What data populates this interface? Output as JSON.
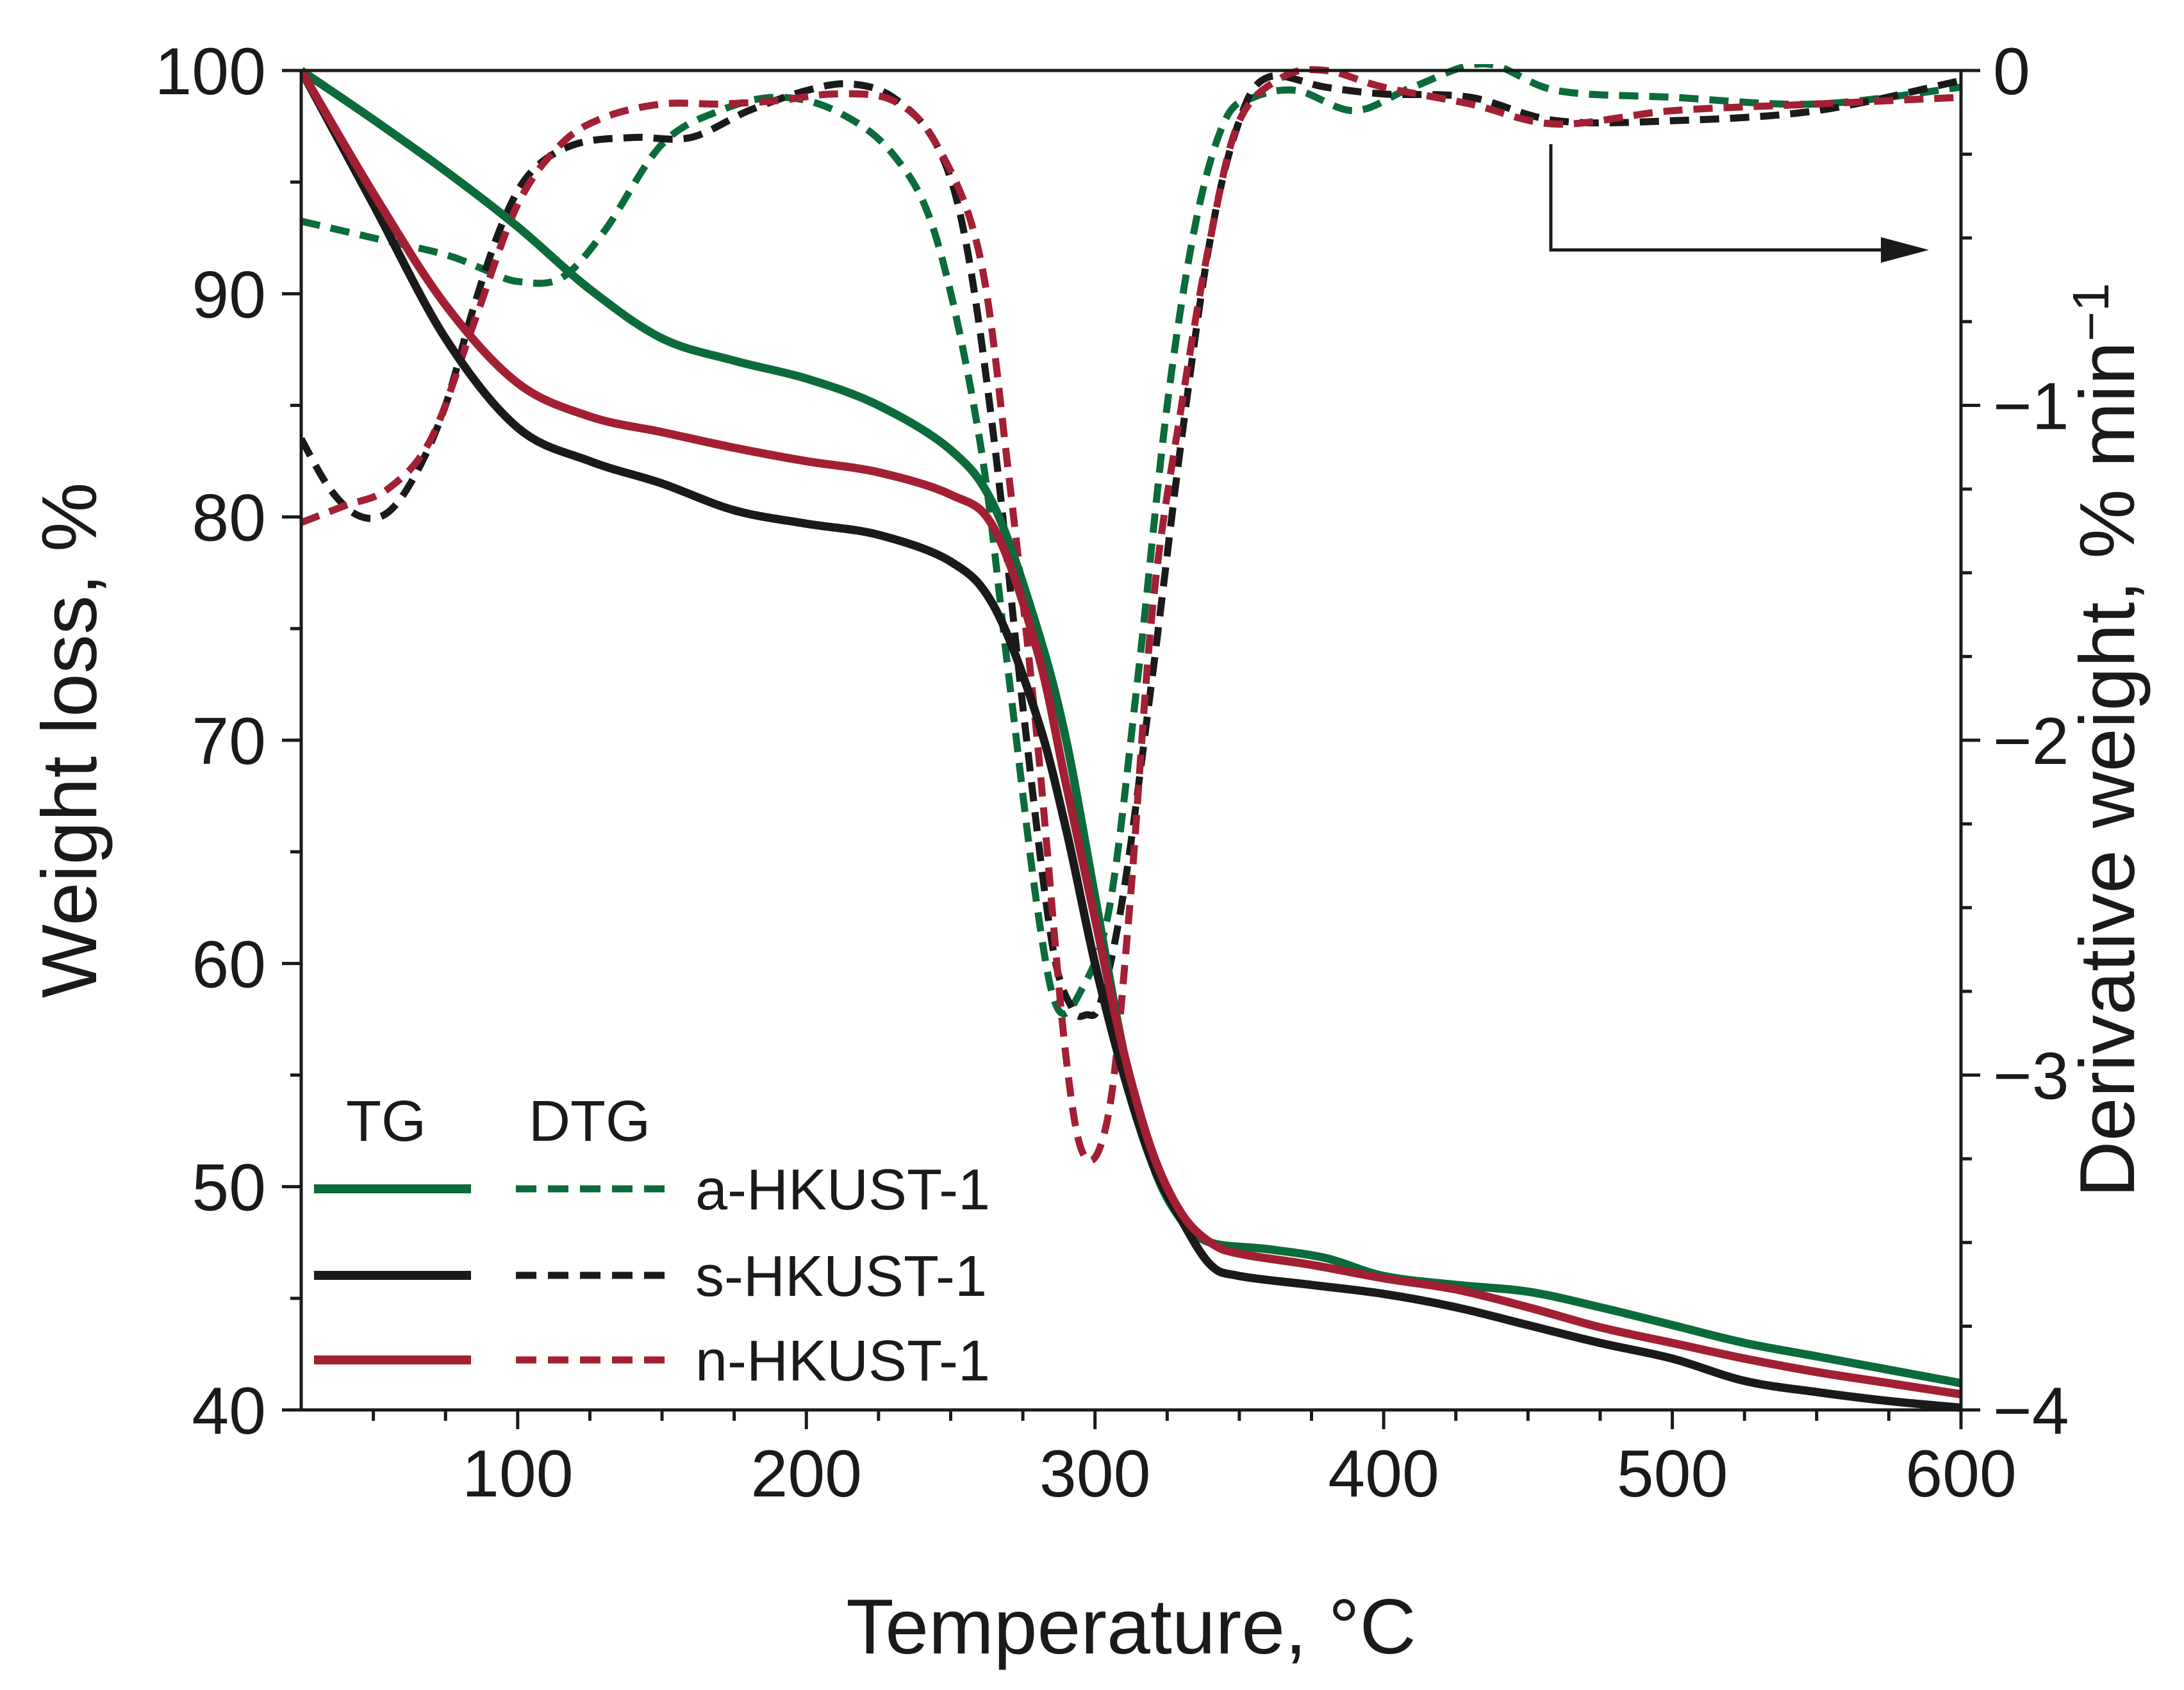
{
  "chart_data": {
    "type": "line",
    "xlabel": "Temperature, °C",
    "ylabel_left": "Weight loss, %",
    "ylabel_right_main": "Derivative weight, % min",
    "ylabel_right_sup": "−1",
    "xlim": [
      25,
      600
    ],
    "ylim_left": [
      40,
      100
    ],
    "ylim_right": [
      -4,
      0
    ],
    "x_ticks": [
      100,
      200,
      300,
      400,
      500,
      600
    ],
    "x_tick_labels": [
      "100",
      "200",
      "300",
      "400",
      "500",
      "600"
    ],
    "y_left_ticks": [
      40,
      50,
      60,
      70,
      80,
      90,
      100
    ],
    "y_left_tick_labels": [
      "40",
      "50",
      "60",
      "70",
      "80",
      "90",
      "100"
    ],
    "y_right_ticks": [
      -4,
      -3,
      -2,
      -1,
      0
    ],
    "y_right_tick_labels": [
      "−4",
      "−3",
      "−2",
      "−1",
      "0"
    ],
    "legend": {
      "head_tg": "TG",
      "head_dtg": "DTG",
      "entries": [
        "a-HKUST-1",
        "s-HKUST-1",
        "n-HKUST-1"
      ]
    },
    "annotation": "arrow from DTG curves pointing to the right axis",
    "series": [
      {
        "name": "a-HKUST-1",
        "kind": "TG",
        "axis": "left",
        "color": "#0b6b3a",
        "x": [
          25,
          50,
          75,
          100,
          125,
          150,
          175,
          200,
          225,
          250,
          265,
          280,
          290,
          300,
          310,
          320,
          330,
          340,
          360,
          380,
          400,
          425,
          450,
          475,
          500,
          525,
          550,
          575,
          600
        ],
        "y": [
          100,
          97.8,
          95.5,
          93,
          90.2,
          88,
          87,
          86.2,
          85,
          83,
          80.5,
          75,
          70,
          63,
          56,
          51,
          48.5,
          47.5,
          47.2,
          46.8,
          46,
          45.6,
          45.3,
          44.6,
          43.8,
          43,
          42.4,
          41.8,
          41.2
        ]
      },
      {
        "name": "s-HKUST-1",
        "kind": "TG",
        "axis": "left",
        "color": "#1a1a1a",
        "x": [
          25,
          50,
          75,
          100,
          125,
          150,
          175,
          200,
          225,
          250,
          265,
          280,
          290,
          300,
          310,
          320,
          330,
          340,
          350,
          375,
          400,
          425,
          450,
          475,
          500,
          525,
          550,
          575,
          600
        ],
        "y": [
          100,
          94,
          88,
          84,
          82.5,
          81.5,
          80.3,
          79.7,
          79.2,
          78,
          76,
          71,
          66,
          60,
          55,
          51,
          48.5,
          46.5,
          46,
          45.6,
          45.2,
          44.6,
          43.8,
          43,
          42.3,
          41.3,
          40.8,
          40.4,
          40.1
        ]
      },
      {
        "name": "n-HKUST-1",
        "kind": "TG",
        "axis": "left",
        "color": "#a31f34",
        "x": [
          25,
          50,
          75,
          100,
          125,
          150,
          175,
          200,
          225,
          250,
          265,
          280,
          290,
          300,
          310,
          320,
          330,
          340,
          350,
          375,
          400,
          425,
          450,
          475,
          500,
          525,
          550,
          575,
          600
        ],
        "y": [
          100,
          94.5,
          89.5,
          86,
          84.5,
          83.8,
          83.1,
          82.5,
          82,
          81,
          79.5,
          74,
          68,
          62,
          56,
          51.5,
          48.8,
          47.5,
          47,
          46.5,
          45.9,
          45.4,
          44.6,
          43.7,
          43,
          42.3,
          41.7,
          41.2,
          40.7
        ]
      },
      {
        "name": "a-HKUST-1",
        "kind": "DTG",
        "axis": "right",
        "color": "#0b6b3a",
        "x": [
          25,
          50,
          75,
          90,
          100,
          115,
          130,
          150,
          170,
          190,
          210,
          230,
          245,
          260,
          270,
          280,
          287,
          295,
          305,
          315,
          325,
          335,
          345,
          355,
          370,
          390,
          410,
          435,
          460,
          500,
          550,
          600
        ],
        "y": [
          -0.45,
          -0.5,
          -0.55,
          -0.6,
          -0.63,
          -0.62,
          -0.48,
          -0.22,
          -0.12,
          -0.08,
          -0.12,
          -0.25,
          -0.5,
          -1.1,
          -1.8,
          -2.5,
          -2.8,
          -2.75,
          -2.5,
          -1.8,
          -1.0,
          -0.45,
          -0.15,
          -0.08,
          -0.06,
          -0.12,
          -0.05,
          0.02,
          -0.06,
          -0.08,
          -0.1,
          -0.05
        ]
      },
      {
        "name": "s-HKUST-1",
        "kind": "DTG",
        "axis": "right",
        "color": "#1a1a1a",
        "x": [
          25,
          35,
          45,
          55,
          65,
          75,
          85,
          95,
          105,
          120,
          140,
          160,
          180,
          200,
          215,
          230,
          245,
          255,
          265,
          275,
          285,
          292,
          297,
          302,
          310,
          320,
          330,
          340,
          350,
          360,
          380,
          400,
          430,
          460,
          500,
          550,
          600
        ],
        "y": [
          -1.1,
          -1.25,
          -1.33,
          -1.32,
          -1.2,
          -1.0,
          -0.7,
          -0.45,
          -0.3,
          -0.22,
          -0.2,
          -0.2,
          -0.12,
          -0.06,
          -0.04,
          -0.08,
          -0.22,
          -0.5,
          -1.1,
          -1.9,
          -2.6,
          -2.8,
          -2.82,
          -2.78,
          -2.45,
          -1.8,
          -1.1,
          -0.5,
          -0.15,
          -0.02,
          -0.05,
          -0.07,
          -0.08,
          -0.15,
          -0.15,
          -0.12,
          -0.03
        ]
      },
      {
        "name": "n-HKUST-1",
        "kind": "DTG",
        "axis": "right",
        "color": "#a31f34",
        "x": [
          25,
          40,
          55,
          70,
          85,
          100,
          115,
          130,
          150,
          170,
          190,
          210,
          230,
          245,
          260,
          270,
          280,
          290,
          297,
          305,
          312,
          320,
          330,
          340,
          350,
          365,
          380,
          400,
          430,
          460,
          500,
          550,
          600
        ],
        "y": [
          -1.35,
          -1.3,
          -1.25,
          -1.1,
          -0.75,
          -0.4,
          -0.22,
          -0.14,
          -0.1,
          -0.1,
          -0.09,
          -0.07,
          -0.09,
          -0.22,
          -0.55,
          -1.2,
          -2.0,
          -2.95,
          -3.25,
          -3.1,
          -2.5,
          -1.6,
          -1.0,
          -0.5,
          -0.15,
          -0.02,
          0.0,
          -0.05,
          -0.1,
          -0.16,
          -0.12,
          -0.1,
          -0.08
        ]
      }
    ]
  }
}
